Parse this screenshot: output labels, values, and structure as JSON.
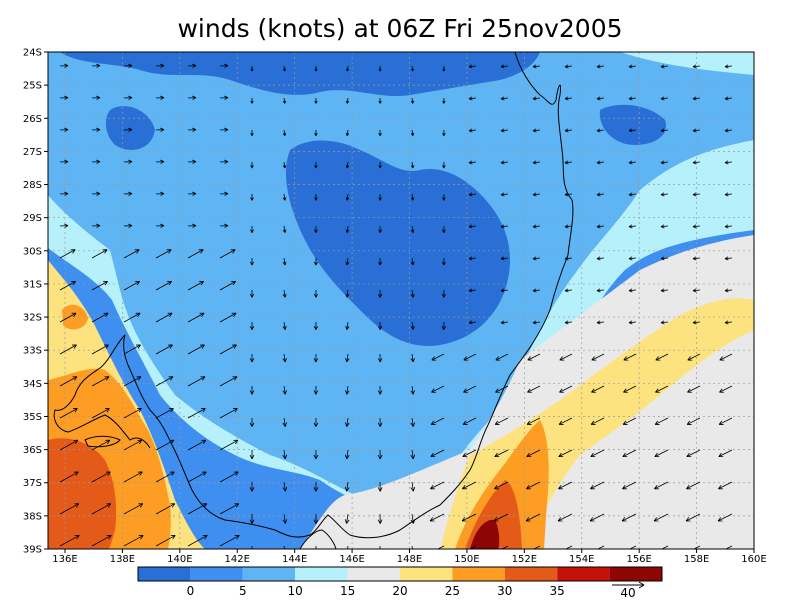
{
  "title": "winds (knots) at 06Z Fri 25nov2005",
  "colors": {
    "lt5": "#2a6fd6",
    "5-10": "#3f8ff0",
    "10-15": "#5fb4f3",
    "15-20": "#b5f0fb",
    "20-25": "#e9e9e9",
    "25-30": "#fde380",
    "30-35": "#fd9d24",
    "35-40": "#e45a18",
    "gt40": "#c4120b",
    "top": "#8e0505",
    "coast": "#000000",
    "grid": "#9a9a9a",
    "arrow": "#000000"
  },
  "latitudes": [
    "24S",
    "25S",
    "26S",
    "27S",
    "28S",
    "29S",
    "30S",
    "31S",
    "32S",
    "33S",
    "34S",
    "35S",
    "36S",
    "37S",
    "38S",
    "39S"
  ],
  "longitudes": [
    "136E",
    "138E",
    "140E",
    "142E",
    "144E",
    "146E",
    "148E",
    "150E",
    "152E",
    "154E",
    "156E",
    "158E",
    "160E"
  ],
  "colorbar": {
    "labels": [
      "0",
      "5",
      "10",
      "15",
      "20",
      "25",
      "30",
      "35"
    ],
    "ref_vector_label": "40"
  }
}
